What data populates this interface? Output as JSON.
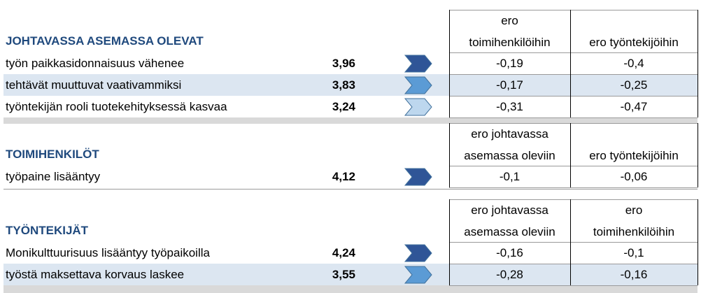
{
  "sections": [
    {
      "title": "JOHTAVASSA ASEMASSA OLEVAT",
      "columns": [
        [
          "ero",
          "toimihenkilöihin"
        ],
        [
          "ero työntekijöihin"
        ]
      ],
      "rows": [
        {
          "label": "työn paikkasidonnaisuus vähenee",
          "value": "3,96",
          "diffs": [
            "-0,19",
            "-0,4"
          ]
        },
        {
          "label": "tehtävät muuttuvat vaativammiksi",
          "value": "3,83",
          "diffs": [
            "-0,17",
            "-0,25"
          ]
        },
        {
          "label": "työntekijän rooli tuotekehityksessä kasvaa",
          "value": "3,24",
          "diffs": [
            "-0,31",
            "-0,47"
          ]
        }
      ]
    },
    {
      "title": "TOIMIHENKILÖT",
      "columns": [
        [
          "ero johtavassa",
          "asemassa oleviin"
        ],
        [
          "ero työntekijöihin"
        ]
      ],
      "rows": [
        {
          "label": "työpaine lisääntyy",
          "value": "4,12",
          "diffs": [
            "-0,1",
            "-0,06"
          ]
        }
      ]
    },
    {
      "title": "TYÖNTEKIJÄT",
      "columns": [
        [
          "ero johtavassa",
          "asemassa oleviin"
        ],
        [
          "ero",
          "toimihenkilöihin"
        ]
      ],
      "rows": [
        {
          "label": "Monikulttuurisuus lisääntyy työpaikoilla",
          "value": "4,24",
          "diffs": [
            "-0,16",
            "-0,1"
          ]
        },
        {
          "label": "työstä maksettava korvaus laskee",
          "value": "3,55",
          "diffs": [
            "-0,28",
            "-0,16"
          ]
        }
      ]
    }
  ]
}
